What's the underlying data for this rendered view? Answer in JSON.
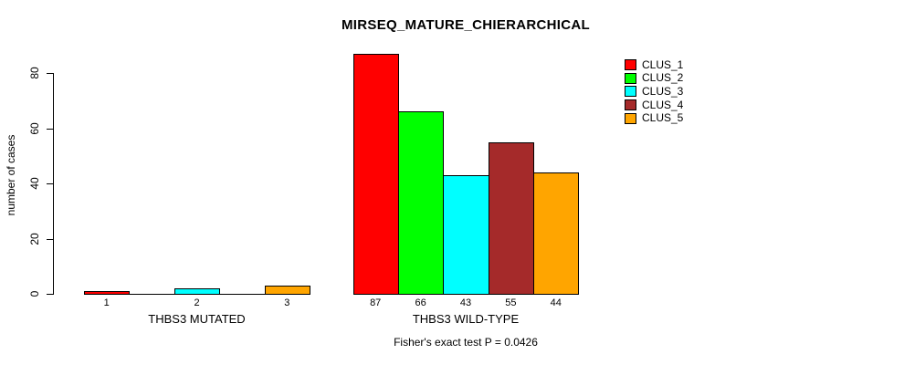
{
  "chart_data": {
    "type": "bar",
    "title": "MIRSEQ_MATURE_CHIERARCHICAL",
    "subtitle": "Fisher's exact test P = 0.0426",
    "ylabel": "number of cases",
    "xlabel": "",
    "yticks": [
      0,
      20,
      40,
      60,
      80
    ],
    "ylim": [
      0,
      88
    ],
    "grid": false,
    "legend_position": "topright",
    "series": [
      {
        "name": "CLUS_1",
        "color": "#FF0000"
      },
      {
        "name": "CLUS_2",
        "color": "#00FF00"
      },
      {
        "name": "CLUS_3",
        "color": "#00FFFF"
      },
      {
        "name": "CLUS_4",
        "color": "#A52A2A"
      },
      {
        "name": "CLUS_5",
        "color": "#FFA500"
      }
    ],
    "groups": [
      {
        "label": "THBS3 MUTATED",
        "values": [
          1,
          0,
          2,
          0,
          3
        ],
        "bar_labels": [
          "1",
          "",
          "2",
          "",
          "3"
        ]
      },
      {
        "label": "THBS3 WILD-TYPE",
        "values": [
          87,
          66,
          43,
          55,
          44
        ],
        "bar_labels": [
          "87",
          "66",
          "43",
          "55",
          "44"
        ]
      }
    ]
  }
}
